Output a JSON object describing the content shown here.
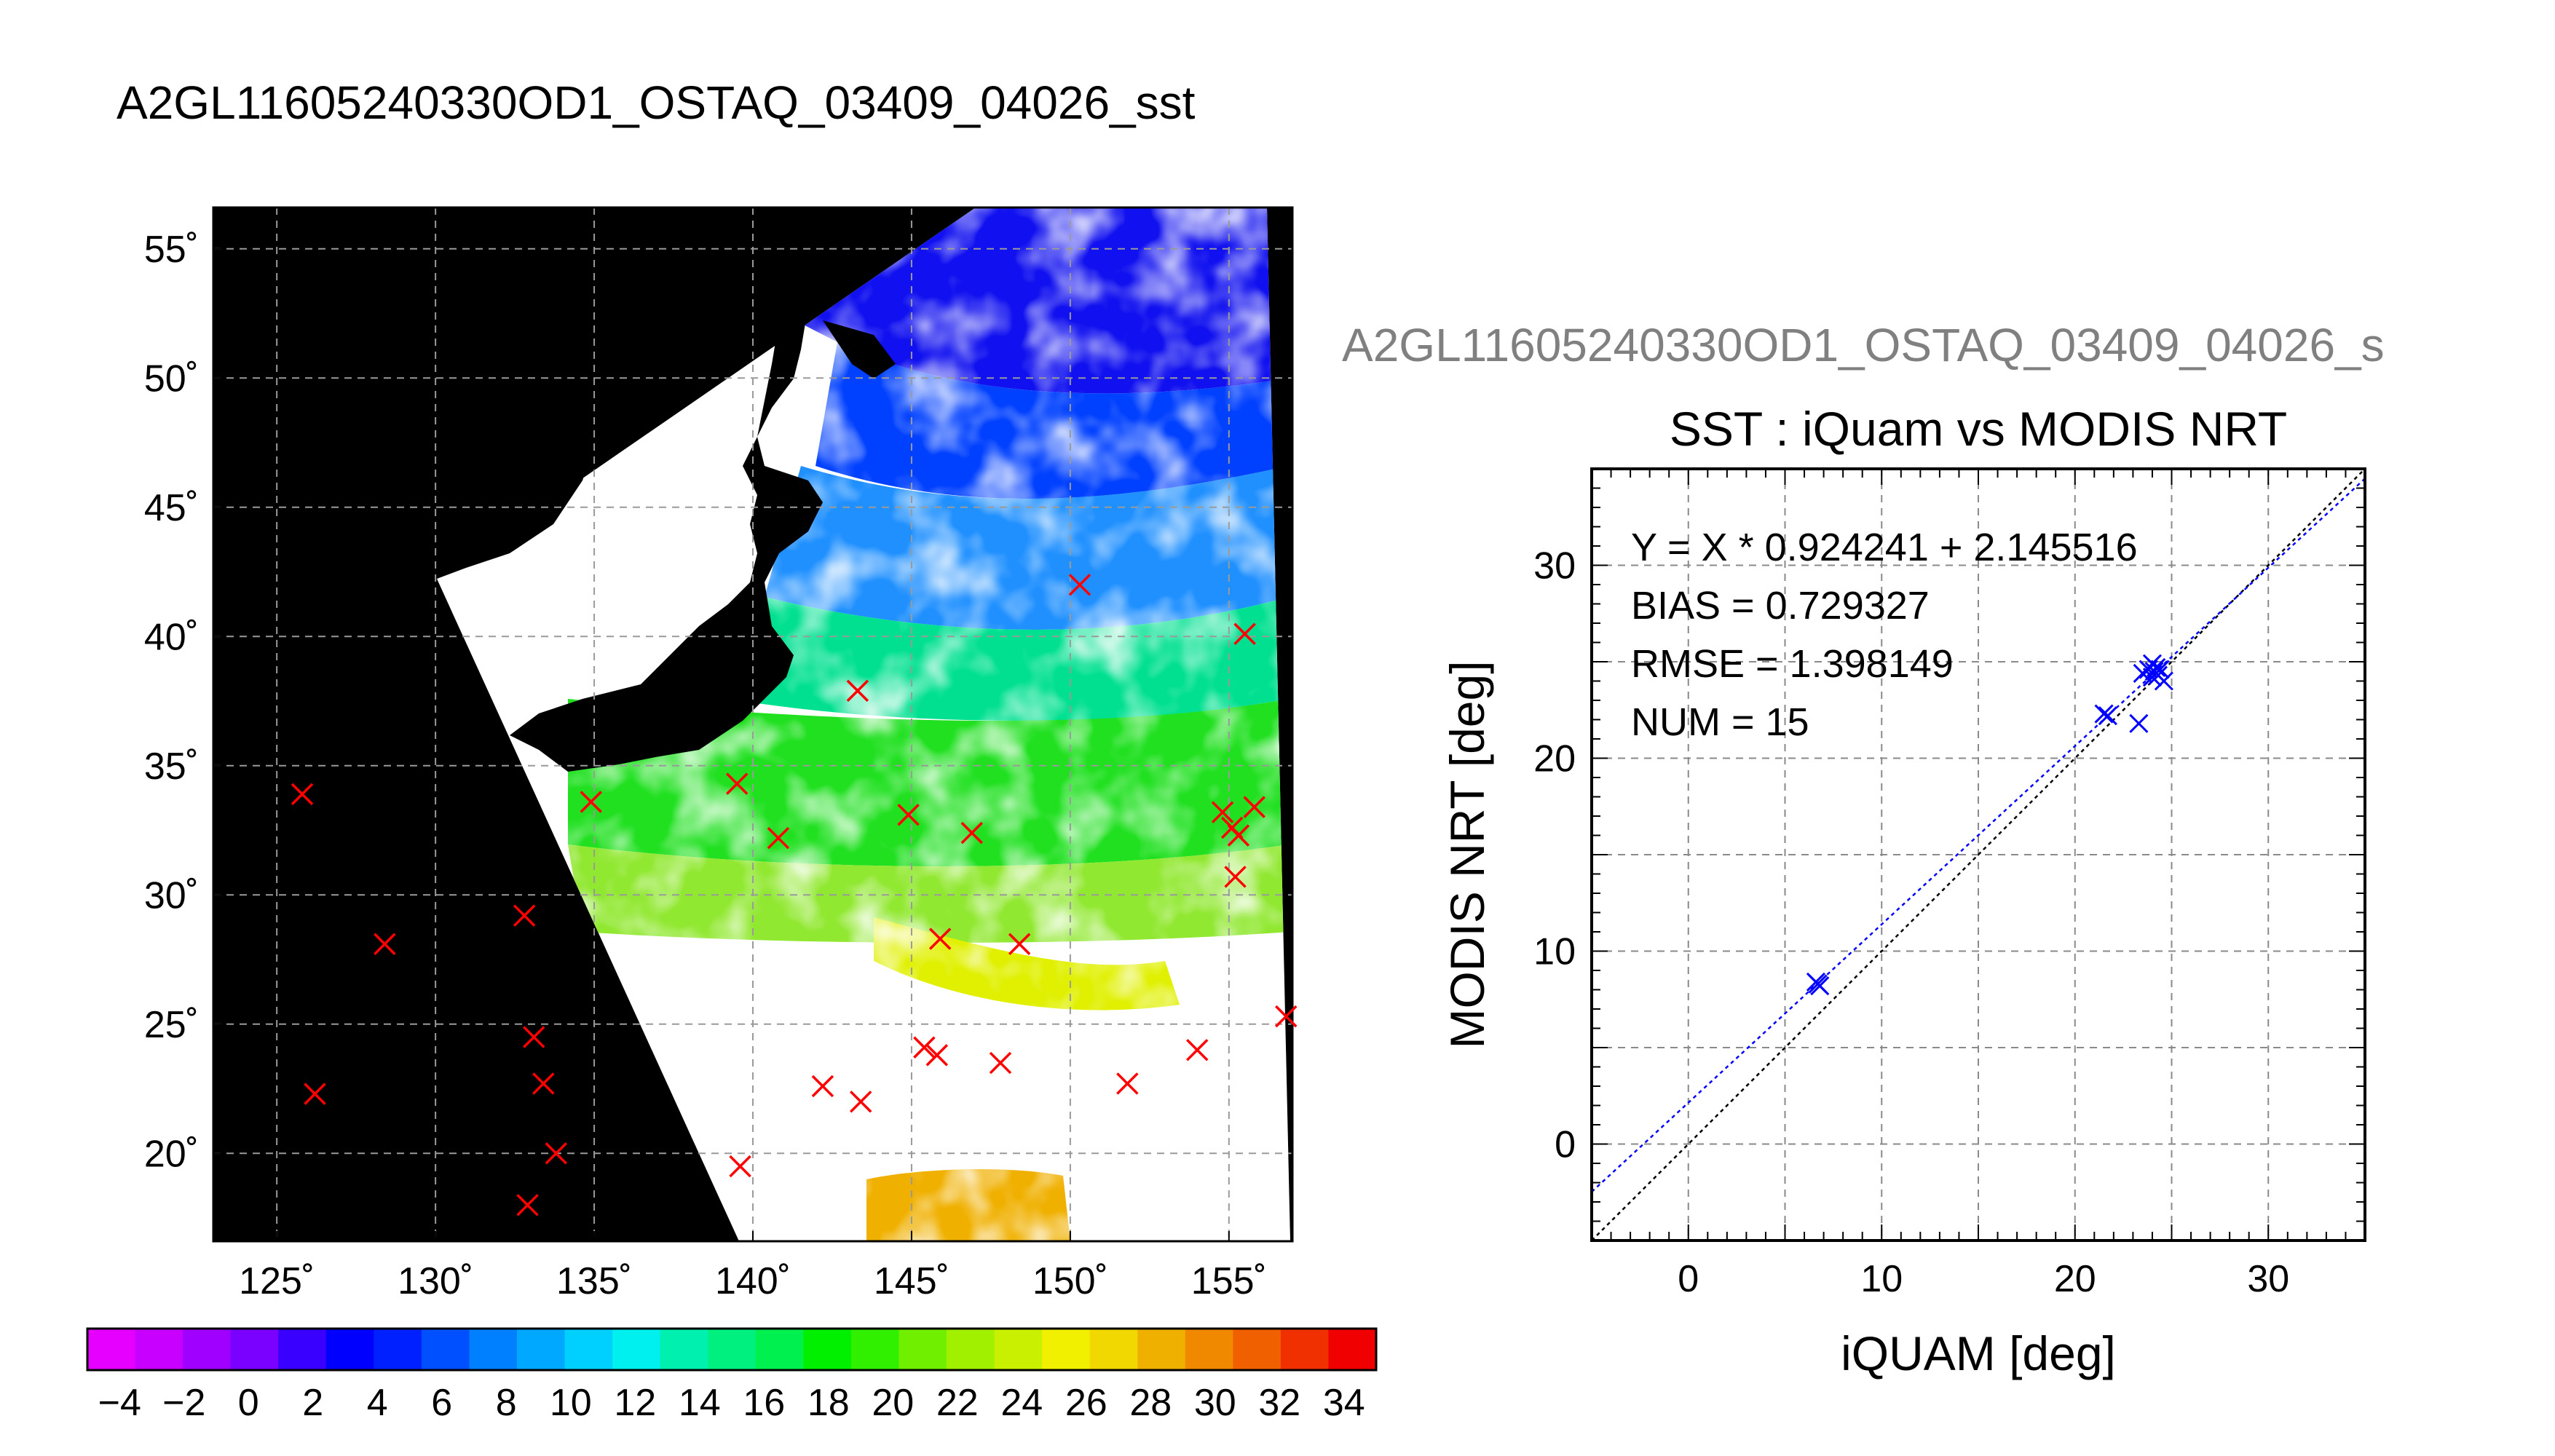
{
  "title": "A2GL11605240330OD1_OSTAQ_03409_04026_sst",
  "subtitle": "A2GL11605240330OD1_OSTAQ_03409_04026_s",
  "colors": {
    "map_background": "#000000",
    "scatter_marker": "#0000ff",
    "regression_line": "#0000ff",
    "identity_line": "#000000",
    "map_marker": "#ff0000"
  },
  "chart_data": [
    {
      "type": "heatmap",
      "name": "SST map",
      "lon_ticks": [
        "125˚",
        "130˚",
        "135˚",
        "140˚",
        "145˚",
        "150˚",
        "155˚"
      ],
      "lat_ticks": [
        "55˚",
        "50˚",
        "45˚",
        "40˚",
        "35˚",
        "30˚",
        "25˚",
        "20˚"
      ],
      "lon_values": [
        125,
        130,
        135,
        140,
        145,
        150,
        155
      ],
      "lat_values": [
        55,
        50,
        45,
        40,
        35,
        30,
        25,
        20
      ],
      "xlim": [
        123,
        157
      ],
      "ylim": [
        16.6,
        56.6
      ],
      "grid": true,
      "markers": [
        {
          "lon": 125.8,
          "lat": 33.9
        },
        {
          "lon": 128.4,
          "lat": 28.1
        },
        {
          "lon": 126.2,
          "lat": 22.3
        },
        {
          "lon": 132.8,
          "lat": 29.2
        },
        {
          "lon": 133.1,
          "lat": 24.5
        },
        {
          "lon": 133.4,
          "lat": 22.7
        },
        {
          "lon": 133.8,
          "lat": 20.0
        },
        {
          "lon": 132.9,
          "lat": 18.0
        },
        {
          "lon": 134.9,
          "lat": 33.6
        },
        {
          "lon": 139.5,
          "lat": 34.3
        },
        {
          "lon": 139.6,
          "lat": 19.5
        },
        {
          "lon": 140.8,
          "lat": 32.2
        },
        {
          "lon": 143.3,
          "lat": 37.9
        },
        {
          "lon": 144.9,
          "lat": 33.1
        },
        {
          "lon": 146.9,
          "lat": 32.4
        },
        {
          "lon": 145.9,
          "lat": 28.3
        },
        {
          "lon": 148.4,
          "lat": 28.1
        },
        {
          "lon": 150.3,
          "lat": 42.0
        },
        {
          "lon": 142.2,
          "lat": 22.6
        },
        {
          "lon": 143.4,
          "lat": 22.0
        },
        {
          "lon": 145.4,
          "lat": 24.1
        },
        {
          "lon": 145.8,
          "lat": 23.8
        },
        {
          "lon": 147.8,
          "lat": 23.5
        },
        {
          "lon": 151.8,
          "lat": 22.7
        },
        {
          "lon": 154.0,
          "lat": 24.0
        },
        {
          "lon": 155.5,
          "lat": 40.1
        },
        {
          "lon": 154.8,
          "lat": 33.2
        },
        {
          "lon": 155.1,
          "lat": 32.6
        },
        {
          "lon": 155.3,
          "lat": 32.3
        },
        {
          "lon": 155.8,
          "lat": 33.4
        },
        {
          "lon": 155.2,
          "lat": 30.7
        },
        {
          "lon": 156.8,
          "lat": 25.3
        }
      ]
    },
    {
      "type": "colorbar",
      "name": "SST colour scale",
      "tick_labels": [
        "−4",
        "−2",
        "0",
        "2",
        "4",
        "6",
        "8",
        "10",
        "12",
        "14",
        "16",
        "18",
        "20",
        "22",
        "24",
        "26",
        "28",
        "30",
        "32",
        "34"
      ],
      "range": [
        -5,
        35
      ],
      "colors": [
        "#e600ff",
        "#c800ff",
        "#a000ff",
        "#7a00ff",
        "#3a00ff",
        "#0000ff",
        "#0020ff",
        "#0050ff",
        "#0080ff",
        "#00a8ff",
        "#00d0ff",
        "#00f0f0",
        "#00f0b0",
        "#00f080",
        "#00f050",
        "#00f000",
        "#30f000",
        "#70f000",
        "#a0f000",
        "#c8f000",
        "#f0f000",
        "#f0d800",
        "#f0b000",
        "#f08800",
        "#f06000",
        "#f03000",
        "#f00000"
      ]
    },
    {
      "type": "scatter",
      "title": "SST : iQuam vs MODIS NRT",
      "xlabel": "iQUAM [deg]",
      "ylabel": "MODIS NRT [deg]",
      "xlim": [
        -5,
        35
      ],
      "ylim": [
        -5,
        35
      ],
      "x_ticks": [
        0,
        10,
        20,
        30
      ],
      "y_ticks": [
        0,
        10,
        20,
        30
      ],
      "grid": true,
      "stats": [
        "Y = X * 0.924241 + 2.145516",
        "BIAS = 0.729327",
        "RMSE = 1.398149",
        "NUM = 15"
      ],
      "regression": {
        "slope": 0.924241,
        "intercept": 2.145516
      },
      "identity_line": true,
      "points": [
        {
          "x": 6.7,
          "y": 8.3
        },
        {
          "x": 6.8,
          "y": 8.2
        },
        {
          "x": 6.6,
          "y": 8.4
        },
        {
          "x": 21.5,
          "y": 22.3
        },
        {
          "x": 21.7,
          "y": 22.2
        },
        {
          "x": 23.3,
          "y": 21.8
        },
        {
          "x": 23.5,
          "y": 24.4
        },
        {
          "x": 23.8,
          "y": 24.6
        },
        {
          "x": 24.0,
          "y": 24.9
        },
        {
          "x": 24.1,
          "y": 24.5
        },
        {
          "x": 24.2,
          "y": 24.7
        },
        {
          "x": 24.3,
          "y": 24.3
        },
        {
          "x": 24.4,
          "y": 24.6
        },
        {
          "x": 24.6,
          "y": 24.0
        },
        {
          "x": 24.0,
          "y": 24.2
        }
      ]
    }
  ]
}
